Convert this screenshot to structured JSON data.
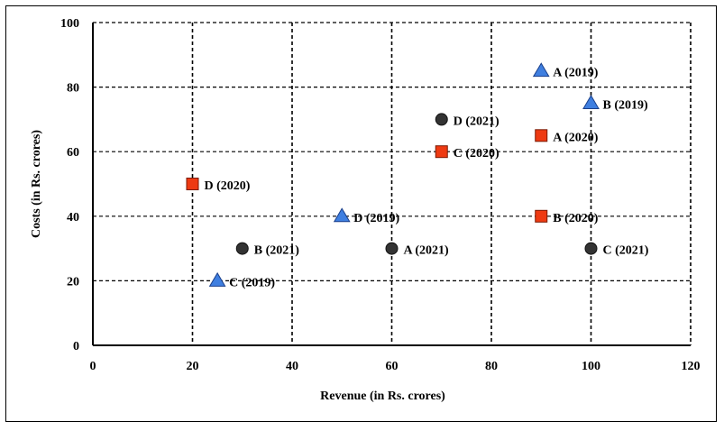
{
  "chart_data": {
    "type": "scatter",
    "title": "",
    "xlabel": "Revenue (in Rs. crores)",
    "ylabel": "Costs (in Rs. crores)",
    "xlim": [
      0,
      120
    ],
    "ylim": [
      0,
      100
    ],
    "xticks": [
      0,
      20,
      40,
      60,
      80,
      100,
      120
    ],
    "yticks": [
      0,
      20,
      40,
      60,
      80,
      100
    ],
    "grid": true,
    "legend": "none",
    "series": [
      {
        "marker": "triangle",
        "color": "#3f7fe0",
        "points": [
          {
            "label": "A (2019)",
            "x": 90,
            "y": 85
          },
          {
            "label": "B (2019)",
            "x": 100,
            "y": 75
          },
          {
            "label": "C (2019)",
            "x": 25,
            "y": 20
          },
          {
            "label": "D (2019)",
            "x": 50,
            "y": 40
          }
        ]
      },
      {
        "marker": "square",
        "color": "#ee3a12",
        "points": [
          {
            "label": "A (2020)",
            "x": 90,
            "y": 65
          },
          {
            "label": "B (2020)",
            "x": 90,
            "y": 40
          },
          {
            "label": "C (2020)",
            "x": 70,
            "y": 60
          },
          {
            "label": "D (2020)",
            "x": 20,
            "y": 50
          }
        ]
      },
      {
        "marker": "circle",
        "color": "#333333",
        "points": [
          {
            "label": "A (2021)",
            "x": 60,
            "y": 30
          },
          {
            "label": "B (2021)",
            "x": 30,
            "y": 30
          },
          {
            "label": "C (2021)",
            "x": 100,
            "y": 30
          },
          {
            "label": "D (2021)",
            "x": 70,
            "y": 70
          }
        ]
      }
    ]
  }
}
